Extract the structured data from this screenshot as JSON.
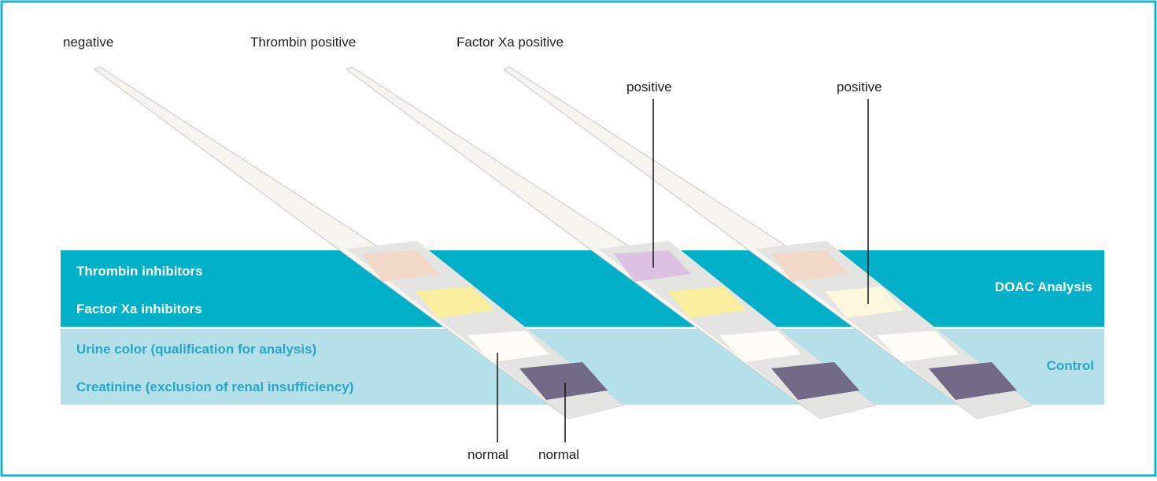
{
  "strips": [
    {
      "label": "negative",
      "normal_labels": [
        "normal",
        "normal"
      ]
    },
    {
      "label": "Thrombin positive",
      "pad_label": "positive"
    },
    {
      "label": "Factor Xa positive",
      "pad_label": "positive"
    }
  ],
  "bands": {
    "analysis": {
      "rows": [
        "Thrombin inhibitors",
        "Factor Xa inhibitors"
      ],
      "title": "DOAC Analysis"
    },
    "control": {
      "rows": [
        "Urine color (qualification for analysis)",
        "Creatinine (exclusion of renal insufficiency)"
      ],
      "title": "Control"
    }
  }
}
